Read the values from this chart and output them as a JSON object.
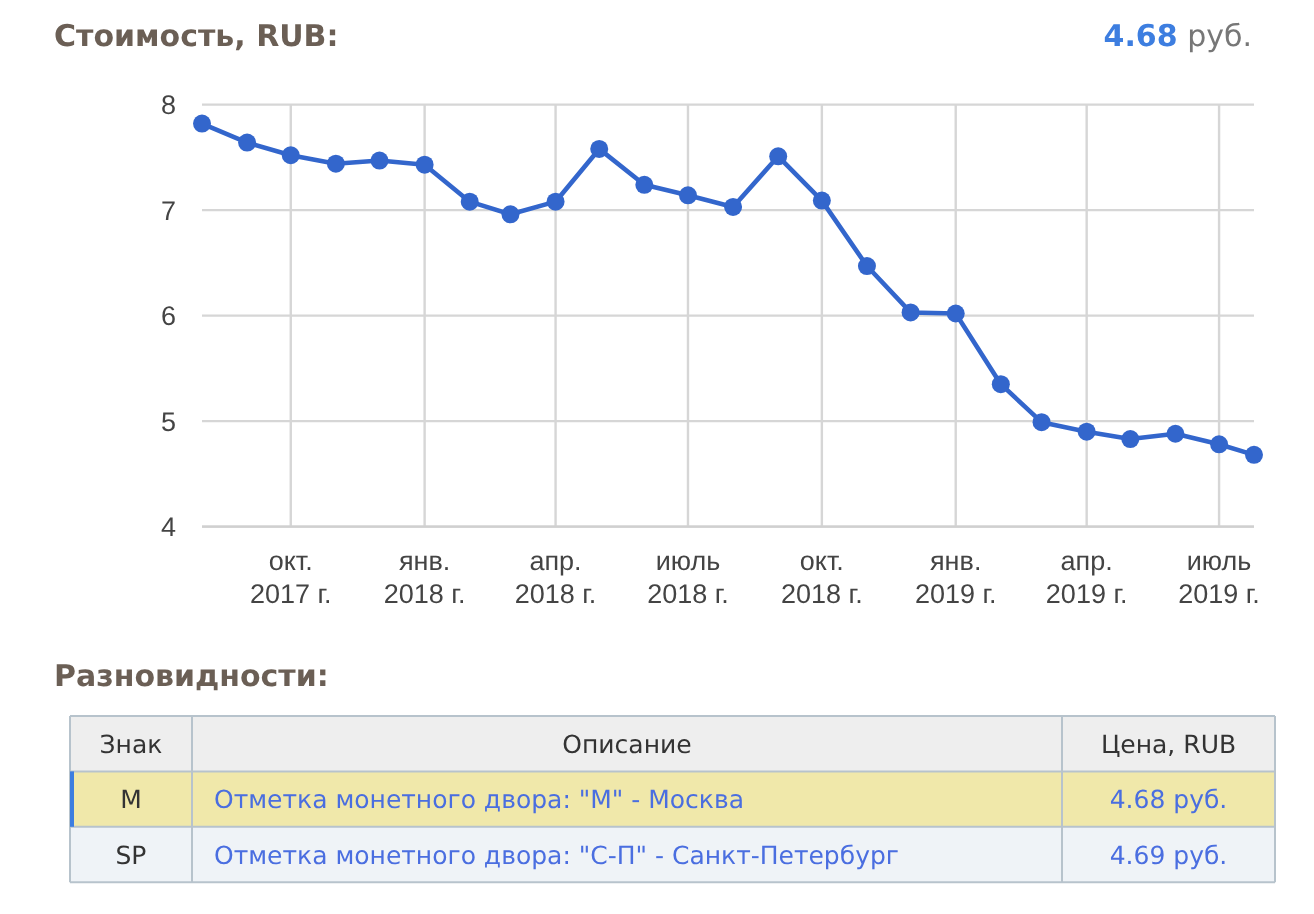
{
  "chart_data": [
    {
      "type": "line",
      "title": "Стоимость, RUB:",
      "subtitle": "4.68 руб.",
      "x": [
        "2017-08-01",
        "2017-09-01",
        "2017-10-01",
        "2017-11-01",
        "2017-12-01",
        "2018-01-01",
        "2018-02-01",
        "2018-03-01",
        "2018-04-01",
        "2018-05-01",
        "2018-06-01",
        "2018-07-01",
        "2018-08-01",
        "2018-09-01",
        "2018-10-01",
        "2018-11-01",
        "2018-12-01",
        "2019-01-01",
        "2019-02-01",
        "2019-03-01",
        "2019-04-01",
        "2019-05-01",
        "2019-06-01",
        "2019-07-01",
        "2019-07-25"
      ],
      "series": [
        {
          "color": "#3366cc",
          "values": [
            7.82,
            7.64,
            7.52,
            7.44,
            7.47,
            7.43,
            7.08,
            6.96,
            7.08,
            7.58,
            7.24,
            7.14,
            7.03,
            7.51,
            7.09,
            6.47,
            6.03,
            6.02,
            5.35,
            4.99,
            4.9,
            4.83,
            4.88,
            4.78,
            4.68
          ]
        }
      ],
      "xlim": [
        "2017-08-01",
        "2019-07-25"
      ],
      "xticks": [
        {
          "value": "2017-10-01",
          "label": "окт.\n2017 г."
        },
        {
          "value": "2018-01-01",
          "label": "янв.\n2018 г."
        },
        {
          "value": "2018-04-01",
          "label": "апр.\n2018 г."
        },
        {
          "value": "2018-07-01",
          "label": "июль\n2018 г."
        },
        {
          "value": "2018-10-01",
          "label": "окт.\n2018 г."
        },
        {
          "value": "2019-01-01",
          "label": "янв.\n2019 г."
        },
        {
          "value": "2019-04-01",
          "label": "апр.\n2019 г."
        },
        {
          "value": "2019-07-01",
          "label": "июль\n2019 г."
        }
      ],
      "ylim": [
        4,
        8
      ],
      "yticks": [
        4,
        5,
        6,
        7,
        8
      ],
      "grid": true,
      "marker": "circle",
      "line_style": "solid"
    },
    {
      "type": "other",
      "title": "Разновидности:",
      "categories": [
        "Знак",
        "Описание",
        "Цена, RUB"
      ],
      "annotations": [
        "M",
        "Отметка монетного двора: \"М\" - Москва",
        "4.68 руб.",
        "SP",
        "Отметка монетного двора: \"С-П\" - Санкт-Петербург",
        "4.69 руб."
      ]
    }
  ]
}
